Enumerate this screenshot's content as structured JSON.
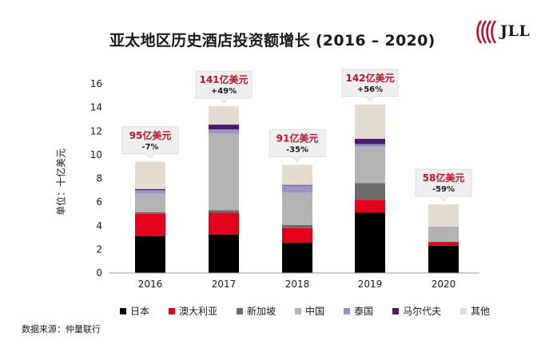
{
  "header": {
    "title": "亚太地区历史酒店投资额增长 (2016 – 2020)",
    "logo_text": "JLL"
  },
  "source_note": "数据来源：仲量联行",
  "colors": {
    "日本": "#000000",
    "澳大利亚": "#e3001b",
    "新加坡": "#6b6b6b",
    "中国": "#b3b3b3",
    "泰国": "#9b94c4",
    "马尔代夫": "#4b1a6b",
    "其他": "#e2dbd0"
  },
  "chart_data": {
    "type": "bar",
    "stacked": true,
    "title": "亚太地区历史酒店投资额增长 (2016 – 2020)",
    "ylabel": "单位：十亿美元",
    "xlabel": "",
    "ylim": [
      0,
      16
    ],
    "yticks": [
      0,
      2,
      4,
      6,
      8,
      10,
      12,
      14,
      16
    ],
    "categories": [
      "2016",
      "2017",
      "2018",
      "2019",
      "2020"
    ],
    "series": [
      {
        "name": "日本",
        "values": [
          3.1,
          3.25,
          2.55,
          5.1,
          2.3
        ]
      },
      {
        "name": "澳大利亚",
        "values": [
          1.9,
          1.85,
          1.25,
          1.1,
          0.3
        ]
      },
      {
        "name": "新加坡",
        "values": [
          0.15,
          0.2,
          0.25,
          1.4,
          0.05
        ]
      },
      {
        "name": "中国",
        "values": [
          1.55,
          6.5,
          2.75,
          3.05,
          1.15
        ]
      },
      {
        "name": "泰国",
        "values": [
          0.3,
          0.35,
          0.6,
          0.25,
          0.1
        ]
      },
      {
        "name": "马尔代夫",
        "values": [
          0.1,
          0.4,
          0.05,
          0.45,
          0.0
        ]
      },
      {
        "name": "其他",
        "values": [
          2.3,
          1.55,
          1.7,
          2.9,
          1.9
        ]
      }
    ],
    "annotations": [
      {
        "category": "2016",
        "amount": "95亿美元",
        "change": "-7%"
      },
      {
        "category": "2017",
        "amount": "141亿美元",
        "change": "+49%"
      },
      {
        "category": "2018",
        "amount": "91亿美元",
        "change": "-35%"
      },
      {
        "category": "2019",
        "amount": "142亿美元",
        "change": "+56%"
      },
      {
        "category": "2020",
        "amount": "58亿美元",
        "change": "-59%"
      }
    ],
    "legend_position": "bottom",
    "grid": false
  }
}
